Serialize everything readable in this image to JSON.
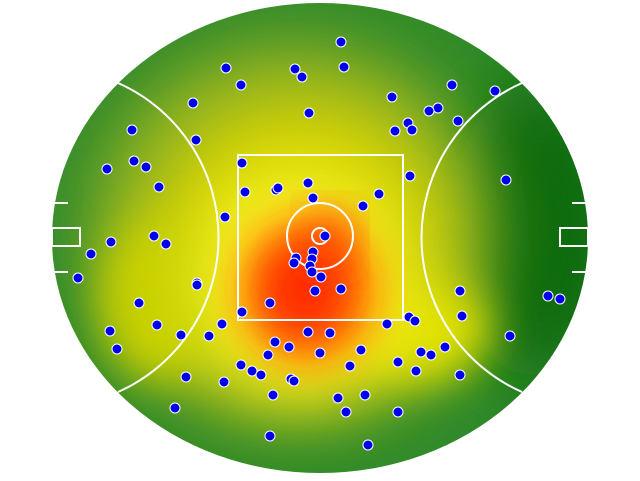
{
  "chart_data": {
    "type": "scatter",
    "x": [
      21,
      -94,
      -25,
      -18,
      24,
      -79,
      -127,
      -11,
      72,
      132,
      175,
      118,
      109,
      138,
      88,
      75,
      92,
      -188,
      -124,
      -186,
      -174,
      -213,
      -78,
      90,
      186,
      -161,
      -75,
      -44,
      -42,
      -12,
      -7,
      59,
      43,
      -95,
      -166,
      -154,
      -209,
      -229,
      5,
      -7,
      -24,
      -26,
      -8,
      -10,
      -8,
      1,
      -242,
      -123,
      -123,
      21,
      -5,
      140,
      228,
      240,
      -181,
      -50,
      -78,
      142,
      89,
      95,
      67,
      -98,
      -163,
      -210,
      -12,
      10,
      -139,
      -111,
      190,
      -45,
      -31,
      -203,
      -52,
      0,
      41,
      125,
      101,
      111,
      78,
      -79,
      -68,
      30,
      -59,
      96,
      140,
      -134,
      -96,
      -29,
      -26,
      -47,
      45,
      18,
      -145,
      26,
      78,
      -50,
      48
    ],
    "y": [
      196,
      170,
      169,
      161,
      171,
      153,
      135,
      125,
      141,
      153,
      147,
      130,
      127,
      117,
      115,
      107,
      108,
      108,
      98,
      77,
      71,
      69,
      75,
      62,
      58,
      51,
      46,
      48,
      50,
      55,
      40,
      44,
      32,
      21,
      2,
      -6,
      -4,
      -16,
      2,
      -14,
      -20,
      -25,
      -21,
      -28,
      -34,
      -39,
      -40,
      -45,
      -47,
      -51,
      -53,
      -53,
      -58,
      -61,
      -65,
      -65,
      -74,
      -78,
      -79,
      -83,
      -86,
      -86,
      -87,
      -93,
      -94,
      -95,
      -97,
      -98,
      -98,
      -104,
      -109,
      -111,
      -117,
      -115,
      -112,
      -109,
      -114,
      -117,
      -124,
      -127,
      -133,
      -128,
      -137,
      -133,
      -137,
      -139,
      -144,
      -141,
      -143,
      -157,
      -157,
      -160,
      -170,
      -174,
      -174,
      -198,
      -207
    ],
    "xlim": [
      -268,
      268
    ],
    "ylim": [
      -235,
      235
    ],
    "color": "#0000ee"
  }
}
